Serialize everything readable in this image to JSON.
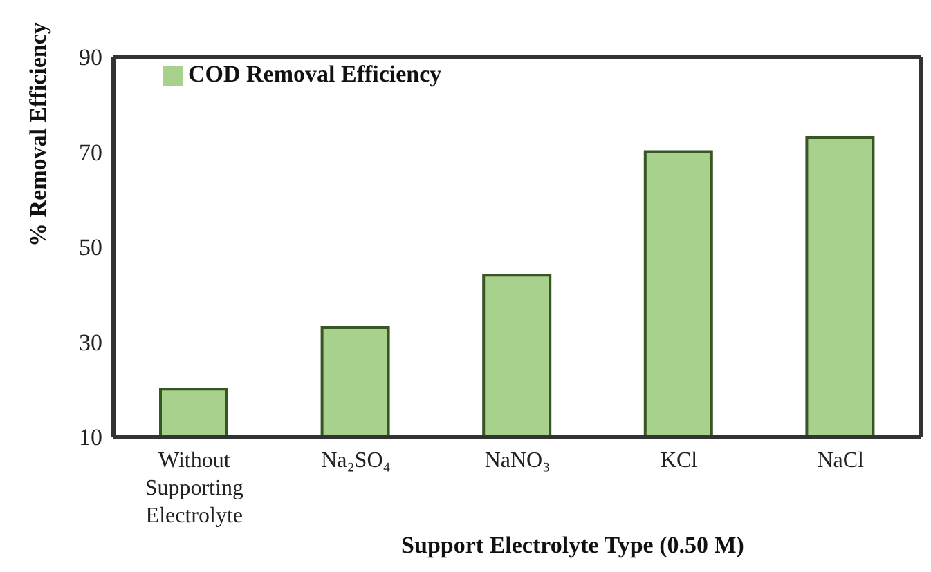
{
  "chart_data": {
    "type": "bar",
    "xlabel": "Support Electrolyte Type (0.50 M)",
    "ylabel": "%  Removal Efficiency",
    "categories": [
      "Without Supporting Electrolyte",
      "Na₂SO₄",
      "NaNO₃",
      "KCl",
      "NaCl"
    ],
    "series": [
      {
        "name": "COD Removal Efficiency",
        "color": "#a9d18e",
        "values": [
          20,
          33,
          44,
          70,
          73
        ]
      }
    ],
    "ylim": [
      10,
      90
    ],
    "yticks": [
      10,
      30,
      50,
      70,
      90
    ],
    "grid": false,
    "legend": "top left"
  }
}
